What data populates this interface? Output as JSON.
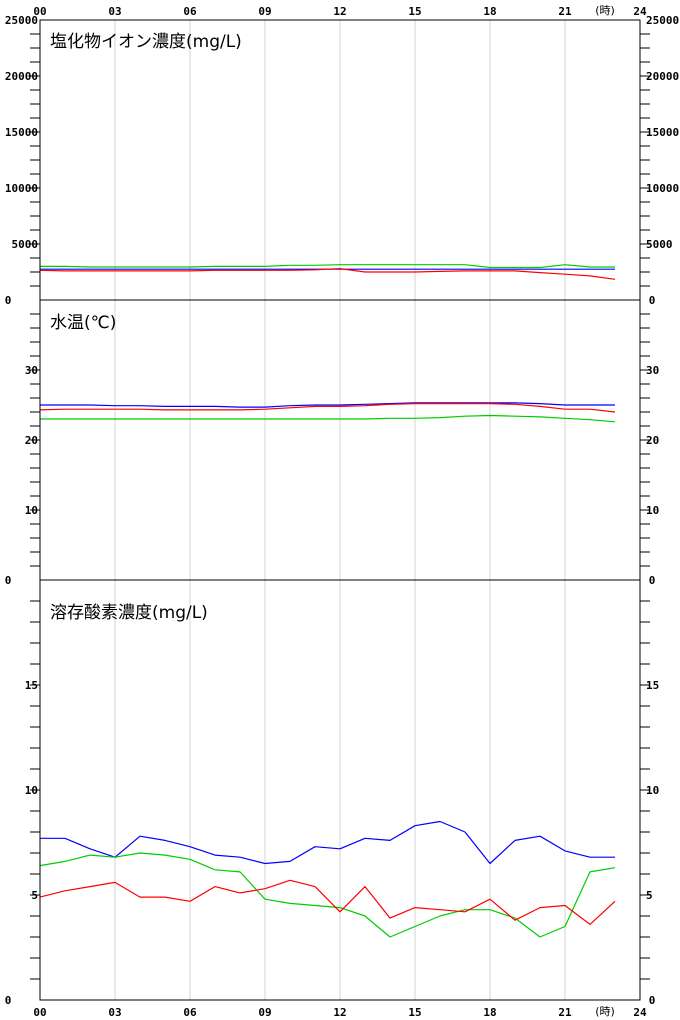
{
  "time_axis": {
    "ticks": [
      "00",
      "03",
      "06",
      "09",
      "12",
      "15",
      "18",
      "21",
      "24"
    ],
    "unit_label": "(時)"
  },
  "colors": {
    "blue": "#0000ff",
    "red": "#ff0000",
    "green": "#00cc00",
    "grid": "#d3d3d3",
    "axis": "#000000"
  },
  "chart_data": [
    {
      "type": "line",
      "title": "塩化物イオン濃度(mg/L)",
      "ylim": [
        0,
        25000
      ],
      "yticks": [
        "5000",
        "10000",
        "15000",
        "20000",
        "25000"
      ],
      "bottom_label": "0",
      "minor_step": 1250,
      "x": [
        0,
        1,
        2,
        3,
        4,
        5,
        6,
        7,
        8,
        9,
        10,
        11,
        12,
        13,
        14,
        15,
        16,
        17,
        18,
        19,
        20,
        21,
        22,
        23
      ],
      "series": [
        {
          "color": "green",
          "values": [
            3000,
            3000,
            2950,
            2950,
            2950,
            2950,
            2950,
            3000,
            3000,
            3000,
            3100,
            3100,
            3150,
            3150,
            3150,
            3150,
            3150,
            3150,
            2900,
            2900,
            2900,
            3150,
            2950,
            2950
          ]
        },
        {
          "color": "blue",
          "values": [
            2750,
            2750,
            2750,
            2750,
            2750,
            2750,
            2750,
            2750,
            2750,
            2750,
            2750,
            2750,
            2750,
            2750,
            2750,
            2750,
            2750,
            2750,
            2750,
            2750,
            2750,
            2750,
            2750,
            2750
          ]
        },
        {
          "color": "red",
          "values": [
            2650,
            2600,
            2600,
            2600,
            2600,
            2600,
            2600,
            2650,
            2650,
            2650,
            2650,
            2700,
            2800,
            2500,
            2500,
            2500,
            2550,
            2600,
            2600,
            2600,
            2450,
            2300,
            2150,
            1850
          ]
        }
      ]
    },
    {
      "type": "line",
      "title": "水温(℃)",
      "ylim": [
        0,
        40
      ],
      "yticks": [
        "10",
        "20",
        "30"
      ],
      "bottom_label": "0",
      "minor_step": 2,
      "x": [
        0,
        1,
        2,
        3,
        4,
        5,
        6,
        7,
        8,
        9,
        10,
        11,
        12,
        13,
        14,
        15,
        16,
        17,
        18,
        19,
        20,
        21,
        22,
        23
      ],
      "series": [
        {
          "color": "blue",
          "values": [
            25.0,
            25.0,
            25.0,
            24.9,
            24.9,
            24.8,
            24.8,
            24.8,
            24.7,
            24.7,
            24.9,
            25.0,
            25.0,
            25.1,
            25.2,
            25.3,
            25.3,
            25.3,
            25.3,
            25.3,
            25.2,
            25.0,
            25.0,
            25.0
          ]
        },
        {
          "color": "red",
          "values": [
            24.3,
            24.4,
            24.4,
            24.4,
            24.4,
            24.3,
            24.3,
            24.3,
            24.3,
            24.4,
            24.6,
            24.8,
            24.8,
            24.9,
            25.1,
            25.2,
            25.2,
            25.2,
            25.2,
            25.1,
            24.8,
            24.4,
            24.4,
            24.0
          ]
        },
        {
          "color": "green",
          "values": [
            23.0,
            23.0,
            23.0,
            23.0,
            23.0,
            23.0,
            23.0,
            23.0,
            23.0,
            23.0,
            23.0,
            23.0,
            23.0,
            23.0,
            23.1,
            23.1,
            23.2,
            23.4,
            23.5,
            23.4,
            23.3,
            23.1,
            22.9,
            22.6
          ]
        }
      ]
    },
    {
      "type": "line",
      "title": "溶存酸素濃度(mg/L)",
      "ylim": [
        0,
        20
      ],
      "yticks": [
        "5",
        "10",
        "15"
      ],
      "bottom_label": "0",
      "minor_step": 1,
      "x": [
        0,
        1,
        2,
        3,
        4,
        5,
        6,
        7,
        8,
        9,
        10,
        11,
        12,
        13,
        14,
        15,
        16,
        17,
        18,
        19,
        20,
        21,
        22,
        23
      ],
      "series": [
        {
          "color": "blue",
          "values": [
            7.7,
            7.7,
            7.2,
            6.8,
            7.8,
            7.6,
            7.3,
            6.9,
            6.8,
            6.5,
            6.6,
            7.3,
            7.2,
            7.7,
            7.6,
            8.3,
            8.5,
            8.0,
            6.5,
            7.6,
            7.8,
            7.1,
            6.8,
            6.8
          ]
        },
        {
          "color": "green",
          "values": [
            6.4,
            6.6,
            6.9,
            6.8,
            7.0,
            6.9,
            6.7,
            6.2,
            6.1,
            4.8,
            4.6,
            4.5,
            4.4,
            4.0,
            3.0,
            3.5,
            4.0,
            4.3,
            4.3,
            3.9,
            3.0,
            3.5,
            6.1,
            6.3
          ]
        },
        {
          "color": "red",
          "values": [
            4.9,
            5.2,
            5.4,
            5.6,
            4.9,
            4.9,
            4.7,
            5.4,
            5.1,
            5.3,
            5.7,
            5.4,
            4.2,
            5.4,
            3.9,
            4.4,
            4.3,
            4.2,
            4.8,
            3.8,
            4.4,
            4.5,
            3.6,
            4.7
          ]
        }
      ]
    }
  ]
}
